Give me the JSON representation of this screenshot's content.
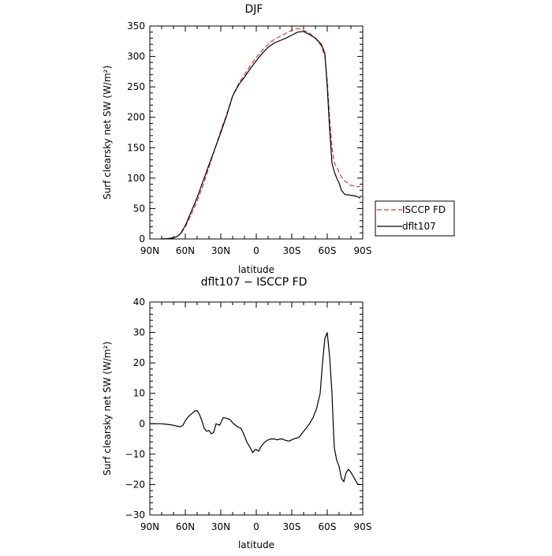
{
  "chart_data": [
    {
      "type": "line",
      "title": "DJF",
      "xlabel": "latitude",
      "ylabel": "Surf clearsky net SW (W/m²)",
      "x_ticks": [
        "90N",
        "60N",
        "30N",
        "0",
        "30S",
        "60S",
        "90S"
      ],
      "y_ticks": [
        "0",
        "50",
        "100",
        "150",
        "200",
        "250",
        "300",
        "350"
      ],
      "xlim": [
        90,
        -90
      ],
      "ylim": [
        0,
        350
      ],
      "legend_position": "outside-right",
      "series": [
        {
          "name": "ISCCP FD",
          "color": "#e0302c",
          "style": "dashed",
          "x": [
            80,
            75,
            70,
            67,
            64,
            60,
            55,
            50,
            45,
            40,
            35,
            30,
            25,
            20,
            15,
            10,
            5,
            0,
            -5,
            -10,
            -15,
            -20,
            -25,
            -30,
            -35,
            -40,
            -45,
            -50,
            -55,
            -58,
            -60,
            -62,
            -64,
            -66,
            -68,
            -70,
            -72,
            -75,
            -80,
            -85,
            -88
          ],
          "y": [
            0,
            0.5,
            2,
            4,
            8,
            20,
            40,
            62,
            88,
            118,
            148,
            178,
            205,
            235,
            255,
            270,
            285,
            298,
            310,
            320,
            328,
            333,
            338,
            343,
            346,
            343,
            338,
            330,
            317,
            300,
            260,
            200,
            150,
            125,
            118,
            110,
            102,
            95,
            88,
            86,
            86
          ]
        },
        {
          "name": "dflt107",
          "color": "#000000",
          "style": "solid",
          "x": [
            80,
            75,
            70,
            67,
            64,
            60,
            55,
            50,
            45,
            40,
            35,
            30,
            25,
            20,
            15,
            10,
            5,
            0,
            -5,
            -10,
            -15,
            -20,
            -25,
            -30,
            -35,
            -40,
            -45,
            -50,
            -55,
            -58,
            -60,
            -62,
            -64,
            -66,
            -68,
            -70,
            -72,
            -75,
            -80,
            -85,
            -88
          ],
          "y": [
            0,
            0.5,
            2,
            4,
            9,
            22,
            45,
            68,
            95,
            122,
            148,
            175,
            203,
            235,
            253,
            266,
            280,
            293,
            305,
            315,
            322,
            326,
            330,
            335,
            340,
            341,
            336,
            330,
            320,
            305,
            250,
            180,
            125,
            110,
            100,
            92,
            80,
            73,
            72,
            70,
            67
          ]
        }
      ]
    },
    {
      "type": "line",
      "title": "dflt107 − ISCCP FD",
      "xlabel": "latitude",
      "ylabel": "Surf clearsky net SW (W/m²)",
      "x_ticks": [
        "90N",
        "60N",
        "30N",
        "0",
        "30S",
        "60S",
        "90S"
      ],
      "y_ticks": [
        "−30",
        "−20",
        "−10",
        "0",
        "10",
        "20",
        "30",
        "40"
      ],
      "xlim": [
        90,
        -90
      ],
      "ylim": [
        -30,
        40
      ],
      "series": [
        {
          "color": "#000000",
          "style": "solid",
          "x": [
            90,
            85,
            80,
            75,
            70,
            67,
            64,
            62,
            60,
            57,
            54,
            52,
            50,
            48,
            46,
            44,
            42,
            40,
            38,
            36,
            34,
            31,
            28,
            25,
            22,
            20,
            16,
            13,
            11,
            8,
            5,
            3,
            1,
            0,
            -2,
            -4,
            -6,
            -9,
            -12,
            -15,
            -18,
            -20,
            -22,
            -25,
            -28,
            -30,
            -33,
            -36,
            -39,
            -42,
            -45,
            -48,
            -51,
            -54,
            -56,
            -58,
            -60,
            -62,
            -64,
            -65,
            -66,
            -68,
            -70,
            -72,
            -74,
            -76,
            -78,
            -80,
            -83,
            -86,
            -88
          ],
          "y": [
            0,
            0,
            0,
            -0.2,
            -0.5,
            -0.8,
            -1,
            -0.5,
            1,
            2.5,
            3.5,
            4.2,
            4.3,
            3,
            1,
            -1.5,
            -2.5,
            -2.2,
            -3.3,
            -2.8,
            0,
            -0.5,
            2,
            1.8,
            1.3,
            0.3,
            -1,
            -1.5,
            -3,
            -6,
            -8,
            -9.5,
            -8.5,
            -8.5,
            -9,
            -7.5,
            -6.5,
            -5.5,
            -5,
            -5,
            -5.3,
            -5,
            -5,
            -5.5,
            -5.7,
            -5.3,
            -4.8,
            -4.5,
            -3,
            -1.5,
            0,
            2,
            5,
            10,
            20,
            28,
            30,
            22,
            10,
            0,
            -8,
            -12,
            -14,
            -18,
            -19,
            -16,
            -15,
            -16,
            -18,
            -20,
            -20
          ]
        }
      ]
    }
  ]
}
